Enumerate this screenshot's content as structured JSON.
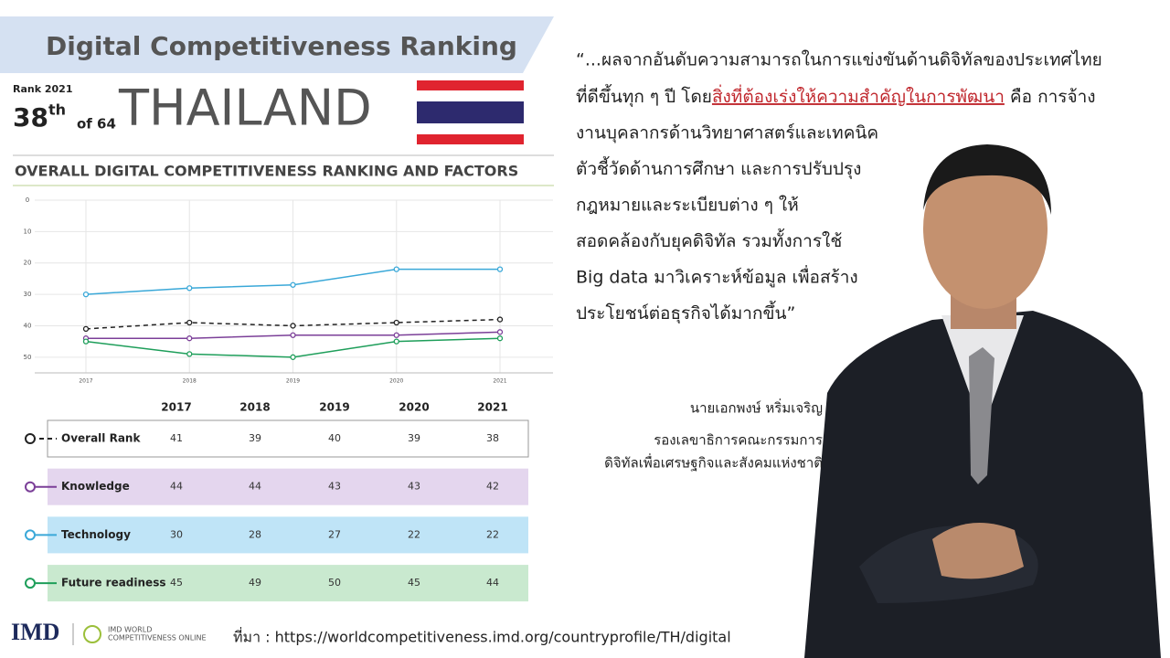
{
  "header": {
    "title": "Digital Competitiveness Ranking",
    "rank_label": "Rank 2021",
    "rank": 38,
    "rank_suffix": "th",
    "of_total": "of 64",
    "country": "THAILAND"
  },
  "chart_data": {
    "type": "line",
    "title": "OVERALL DIGITAL COMPETITIVENESS RANKING AND FACTORS",
    "categories": [
      "2017",
      "2018",
      "2019",
      "2020",
      "2021"
    ],
    "series": [
      {
        "name": "Overall Rank",
        "color": "#222222",
        "style": "dashed",
        "row_color": "#ffffff",
        "values": [
          41,
          39,
          40,
          39,
          38
        ]
      },
      {
        "name": "Knowledge",
        "color": "#7b3f98",
        "style": "solid",
        "row_color": "#e4d6ee",
        "values": [
          44,
          44,
          43,
          43,
          42
        ]
      },
      {
        "name": "Technology",
        "color": "#3aa8d8",
        "style": "solid",
        "row_color": "#bfe4f7",
        "values": [
          30,
          28,
          27,
          22,
          22
        ]
      },
      {
        "name": "Future readiness",
        "color": "#1e9e5a",
        "style": "solid",
        "row_color": "#c9e9cf",
        "values": [
          45,
          49,
          50,
          45,
          44
        ]
      }
    ],
    "ylim": [
      0,
      55
    ],
    "yticks": [
      0,
      10,
      20,
      30,
      40,
      50
    ],
    "y_inverted": true,
    "grid": true
  },
  "quote": {
    "first": "“...ผลจากอันดับความสามารถในการแข่งขันด้านดิจิทัลของประเทศไทย",
    "second_before": "ที่ดีขึ้นทุก ๆ ปี โดย",
    "second_highlight": "สิ่งที่ต้องเร่งให้ความสำคัญในการพัฒนา",
    "second_after": " คือ การจ้าง",
    "rest": [
      "งานบุคลากรด้านวิทยาศาสตร์และเทคนิค",
      "ตัวชี้วัดด้านการศึกษา และการปรับปรุง",
      "กฎหมายและระเบียบต่าง ๆ ให้",
      "สอดคล้องกับยุคดิจิทัล รวมทั้งการใช้",
      "Big data มาวิเคราะห์ข้อมูล เพื่อสร้าง",
      "ประโยชน์ต่อธุรกิจได้มากขึ้น”"
    ]
  },
  "speaker": {
    "name": "นายเอกพงษ์ หริ่มเจริญ",
    "title_lines": [
      "รองเลขาธิการคณะกรรมการ",
      "ดิจิทัลเพื่อเศรษฐกิจและสังคมแห่งชาติ"
    ]
  },
  "source": "ที่มา : https://worldcompetitiveness.imd.org/countryprofile/TH/digital",
  "logos": {
    "imd": "IMD",
    "online_1": "IMD WORLD",
    "online_2": "COMPETITIVENESS ONLINE"
  }
}
